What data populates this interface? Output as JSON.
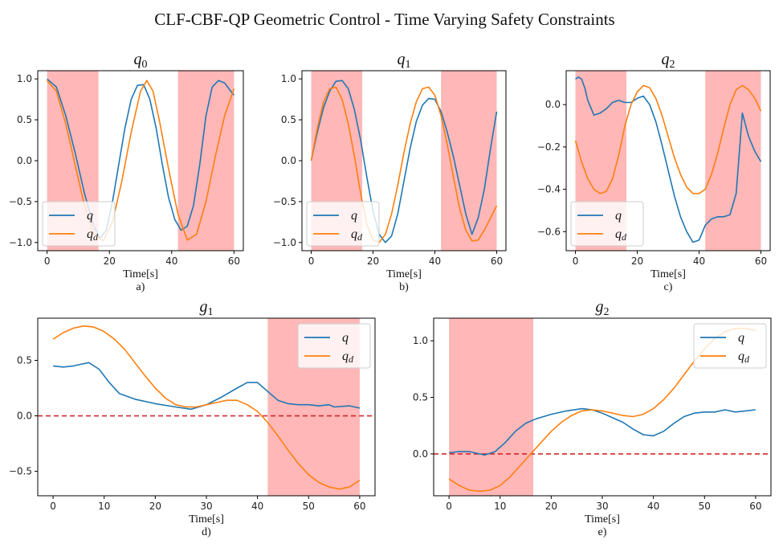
{
  "figure": {
    "title": "CLF-CBF-QP Geometric Control - Time Varying Safety Constraints"
  },
  "colors": {
    "q": "#1f77b4",
    "qd": "#ff7f0e",
    "shade": "#ffb3b3",
    "ref": "#d62728"
  },
  "chart_data": [
    {
      "type": "line",
      "title": "q0",
      "sublabel": "a)",
      "xlabel": "Time[s]",
      "xlim": [
        -3,
        63
      ],
      "ylim": [
        -1.1,
        1.1
      ],
      "xticks": [
        0,
        20,
        40,
        60
      ],
      "yticks": [
        1.0,
        0.5,
        0.0,
        -0.5,
        -1.0
      ],
      "ytick_labels": [
        "1.0",
        "0.5",
        "0.0",
        "−0.5",
        "−1.0"
      ],
      "shaded_regions": [
        [
          0,
          16.5
        ],
        [
          42,
          60
        ]
      ],
      "legend": "lower-left",
      "series": [
        {
          "name": "q",
          "x": [
            0,
            3,
            6,
            9,
            12,
            15,
            17,
            19,
            21,
            23,
            25,
            27,
            29,
            31,
            33,
            35,
            37,
            39,
            41,
            43,
            45,
            47,
            49,
            51,
            53,
            55,
            57,
            59,
            60
          ],
          "y": [
            1.0,
            0.9,
            0.55,
            0.1,
            -0.4,
            -0.8,
            -0.95,
            -0.85,
            -0.5,
            -0.05,
            0.4,
            0.75,
            0.92,
            0.93,
            0.75,
            0.4,
            -0.05,
            -0.45,
            -0.72,
            -0.85,
            -0.8,
            -0.55,
            -0.05,
            0.55,
            0.9,
            0.98,
            0.95,
            0.85,
            0.8
          ]
        },
        {
          "name": "q_d",
          "x": [
            0,
            3,
            6,
            9,
            12,
            15,
            18,
            21,
            24,
            27,
            30,
            32,
            34,
            36,
            39,
            42,
            45,
            48,
            51,
            54,
            57,
            60
          ],
          "y": [
            0.98,
            0.85,
            0.45,
            -0.05,
            -0.55,
            -0.9,
            -0.98,
            -0.75,
            -0.25,
            0.35,
            0.85,
            0.98,
            0.85,
            0.5,
            -0.1,
            -0.65,
            -0.97,
            -0.9,
            -0.5,
            0.05,
            0.55,
            0.88
          ]
        }
      ]
    },
    {
      "type": "line",
      "title": "q1",
      "sublabel": "b)",
      "xlabel": "Time[s]",
      "xlim": [
        -3,
        63
      ],
      "ylim": [
        -1.1,
        1.1
      ],
      "xticks": [
        0,
        20,
        40,
        60
      ],
      "yticks": [
        1.0,
        0.5,
        0.0,
        -0.5,
        -1.0
      ],
      "ytick_labels": [
        "1.0",
        "0.5",
        "0.0",
        "−0.5",
        "−1.0"
      ],
      "shaded_regions": [
        [
          0,
          16.5
        ],
        [
          42,
          60
        ]
      ],
      "legend": "lower-left",
      "series": [
        {
          "name": "q",
          "x": [
            0,
            2,
            4,
            6,
            8,
            10,
            12,
            14,
            16,
            18,
            20,
            22,
            24,
            26,
            28,
            30,
            32,
            34,
            36,
            38,
            40,
            42,
            44,
            46,
            48,
            50,
            52,
            54,
            56,
            58,
            60
          ],
          "y": [
            0.0,
            0.35,
            0.65,
            0.85,
            0.97,
            0.98,
            0.88,
            0.62,
            0.25,
            -0.2,
            -0.62,
            -0.9,
            -1.0,
            -0.92,
            -0.65,
            -0.25,
            0.15,
            0.48,
            0.68,
            0.76,
            0.75,
            0.6,
            0.35,
            0.05,
            -0.3,
            -0.65,
            -0.9,
            -0.7,
            -0.35,
            0.15,
            0.6
          ]
        },
        {
          "name": "q_d",
          "x": [
            0,
            2,
            4,
            6,
            8,
            10,
            12,
            14,
            16,
            18,
            20,
            22,
            24,
            26,
            28,
            30,
            32,
            34,
            36,
            38,
            40,
            42,
            44,
            46,
            48,
            50,
            52,
            54,
            56,
            58,
            60
          ],
          "y": [
            0.0,
            0.4,
            0.72,
            0.88,
            0.9,
            0.75,
            0.45,
            0.05,
            -0.4,
            -0.78,
            -0.97,
            -1.0,
            -0.9,
            -0.65,
            -0.3,
            0.1,
            0.45,
            0.72,
            0.88,
            0.9,
            0.8,
            0.55,
            0.2,
            -0.2,
            -0.58,
            -0.85,
            -0.98,
            -0.97,
            -0.85,
            -0.7,
            -0.55
          ]
        }
      ]
    },
    {
      "type": "line",
      "title": "q2",
      "sublabel": "c)",
      "xlabel": "Time[s]",
      "xlim": [
        -3,
        63
      ],
      "ylim": [
        -0.69,
        0.16
      ],
      "xticks": [
        0,
        20,
        40,
        60
      ],
      "yticks": [
        0.0,
        -0.2,
        -0.4,
        -0.6
      ],
      "ytick_labels": [
        "0.0",
        "−0.2",
        "−0.4",
        "−0.6"
      ],
      "shaded_regions": [
        [
          0,
          16.5
        ],
        [
          42,
          60
        ]
      ],
      "legend": "lower-left",
      "series": [
        {
          "name": "q",
          "x": [
            0,
            1,
            2,
            3,
            4,
            6,
            8,
            10,
            12,
            14,
            16,
            18,
            20,
            22,
            24,
            26,
            28,
            30,
            32,
            34,
            36,
            38,
            40,
            42,
            44,
            46,
            48,
            50,
            52,
            54,
            56,
            58,
            60
          ],
          "y": [
            0.12,
            0.13,
            0.12,
            0.08,
            0.02,
            -0.05,
            -0.04,
            -0.02,
            0.01,
            0.02,
            0.01,
            0.01,
            0.03,
            0.04,
            0.0,
            -0.08,
            -0.19,
            -0.31,
            -0.43,
            -0.53,
            -0.6,
            -0.65,
            -0.64,
            -0.57,
            -0.54,
            -0.53,
            -0.53,
            -0.52,
            -0.42,
            -0.04,
            -0.15,
            -0.22,
            -0.27
          ]
        },
        {
          "name": "q_d",
          "x": [
            0,
            2,
            4,
            6,
            8,
            10,
            12,
            14,
            16,
            18,
            20,
            22,
            24,
            26,
            28,
            30,
            32,
            34,
            36,
            38,
            40,
            42,
            44,
            46,
            48,
            50,
            52,
            54,
            56,
            58,
            60
          ],
          "y": [
            -0.17,
            -0.27,
            -0.35,
            -0.4,
            -0.42,
            -0.41,
            -0.35,
            -0.24,
            -0.1,
            0.0,
            0.06,
            0.09,
            0.08,
            0.03,
            -0.05,
            -0.15,
            -0.25,
            -0.33,
            -0.39,
            -0.42,
            -0.42,
            -0.4,
            -0.33,
            -0.23,
            -0.11,
            0.0,
            0.07,
            0.09,
            0.07,
            0.03,
            -0.03
          ]
        }
      ]
    },
    {
      "type": "line",
      "title": "g1",
      "sublabel": "d)",
      "xlabel": "Time[s]",
      "xlim": [
        -3,
        63
      ],
      "ylim": [
        -0.72,
        0.88
      ],
      "xticks": [
        0,
        10,
        20,
        30,
        40,
        50,
        60
      ],
      "yticks": [
        0.5,
        0.0,
        -0.5
      ],
      "ytick_labels": [
        "0.5",
        "0.0",
        "−0.5"
      ],
      "shaded_regions": [
        [
          42,
          60
        ]
      ],
      "reference_line": 0.0,
      "legend": "top-right",
      "series": [
        {
          "name": "q",
          "x": [
            0,
            2,
            4,
            6,
            7,
            9,
            11,
            13,
            16,
            20,
            24,
            27,
            30,
            33,
            36,
            38,
            40,
            42,
            44,
            46,
            48,
            50,
            52,
            54,
            55,
            58,
            60
          ],
          "y": [
            0.45,
            0.44,
            0.45,
            0.47,
            0.48,
            0.42,
            0.3,
            0.2,
            0.15,
            0.11,
            0.08,
            0.06,
            0.1,
            0.17,
            0.25,
            0.3,
            0.3,
            0.22,
            0.14,
            0.11,
            0.1,
            0.1,
            0.09,
            0.1,
            0.08,
            0.09,
            0.07
          ]
        },
        {
          "name": "q_d",
          "x": [
            0,
            2,
            4,
            6,
            8,
            10,
            12,
            14,
            16,
            18,
            20,
            22,
            24,
            26,
            28,
            30,
            32,
            34,
            36,
            38,
            40,
            42,
            44,
            46,
            48,
            50,
            52,
            54,
            56,
            58,
            60
          ],
          "y": [
            0.69,
            0.75,
            0.79,
            0.81,
            0.8,
            0.76,
            0.69,
            0.6,
            0.48,
            0.36,
            0.25,
            0.16,
            0.1,
            0.08,
            0.08,
            0.1,
            0.12,
            0.14,
            0.14,
            0.1,
            0.04,
            -0.06,
            -0.18,
            -0.31,
            -0.43,
            -0.53,
            -0.6,
            -0.64,
            -0.66,
            -0.64,
            -0.58
          ]
        }
      ]
    },
    {
      "type": "line",
      "title": "g2",
      "sublabel": "e)",
      "xlabel": "Time[s]",
      "xlim": [
        -3,
        63
      ],
      "ylim": [
        -0.37,
        1.2
      ],
      "xticks": [
        0,
        10,
        20,
        30,
        40,
        50,
        60
      ],
      "yticks": [
        1.0,
        0.5,
        0.0
      ],
      "ytick_labels": [
        "1.0",
        "0.5",
        "0.0"
      ],
      "shaded_regions": [
        [
          0,
          16.5
        ]
      ],
      "reference_line": 0.0,
      "legend": "top-right",
      "series": [
        {
          "name": "q",
          "x": [
            0,
            2,
            4,
            6,
            7,
            9,
            11,
            13,
            15,
            17,
            20,
            23,
            26,
            28,
            30,
            32,
            34,
            36,
            38,
            40,
            42,
            44,
            46,
            48,
            50,
            52,
            54,
            56,
            58,
            60
          ],
          "y": [
            0.01,
            0.02,
            0.02,
            0.0,
            -0.01,
            0.02,
            0.1,
            0.2,
            0.27,
            0.31,
            0.35,
            0.38,
            0.4,
            0.39,
            0.36,
            0.32,
            0.28,
            0.22,
            0.17,
            0.16,
            0.2,
            0.27,
            0.33,
            0.36,
            0.37,
            0.37,
            0.39,
            0.37,
            0.38,
            0.39
          ]
        },
        {
          "name": "q_d",
          "x": [
            0,
            2,
            4,
            6,
            8,
            10,
            12,
            14,
            16,
            18,
            20,
            22,
            24,
            26,
            28,
            30,
            32,
            34,
            36,
            38,
            40,
            42,
            44,
            46,
            48,
            50,
            52,
            54,
            56,
            58,
            60
          ],
          "y": [
            -0.22,
            -0.28,
            -0.32,
            -0.33,
            -0.32,
            -0.28,
            -0.2,
            -0.1,
            0.0,
            0.1,
            0.2,
            0.28,
            0.34,
            0.38,
            0.39,
            0.38,
            0.36,
            0.34,
            0.33,
            0.35,
            0.4,
            0.48,
            0.58,
            0.7,
            0.82,
            0.93,
            1.02,
            1.08,
            1.11,
            1.11,
            1.09
          ]
        }
      ]
    }
  ]
}
